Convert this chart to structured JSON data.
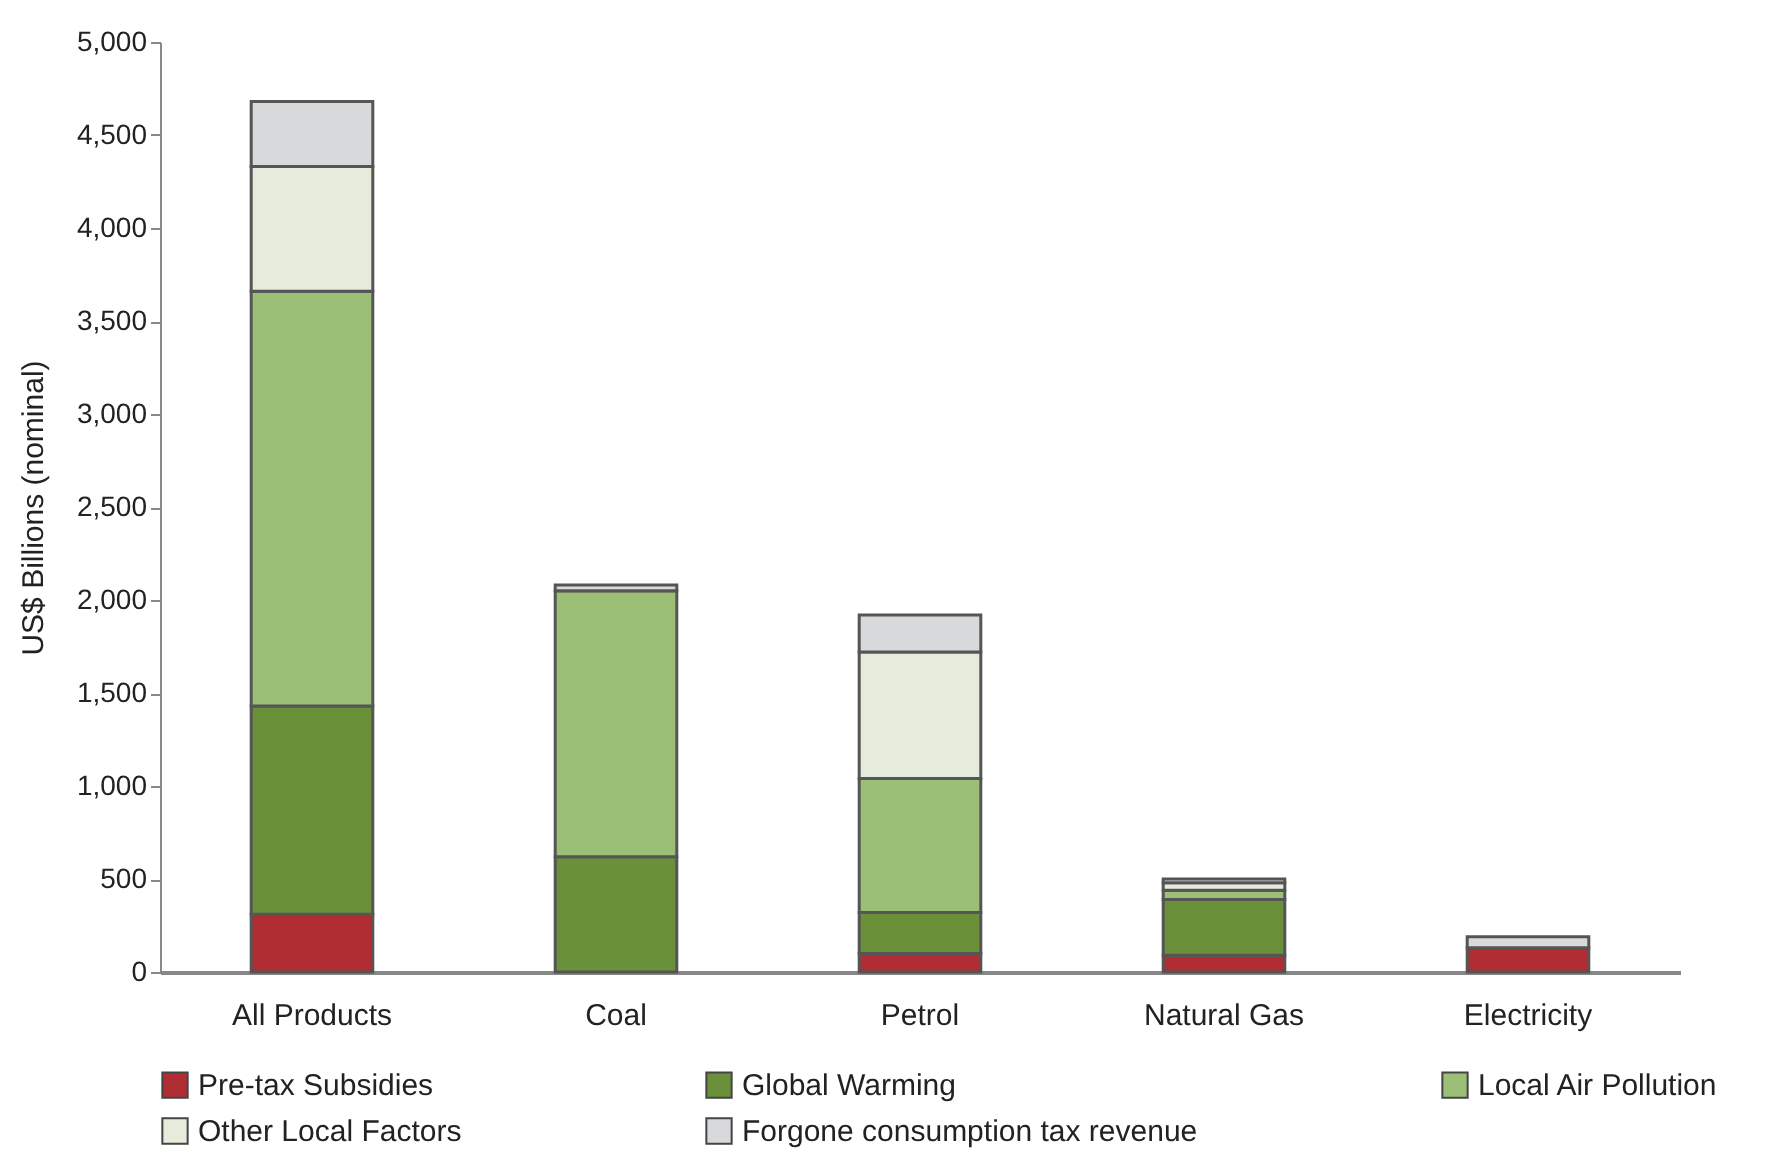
{
  "chart_data": {
    "type": "bar",
    "stacked": true,
    "ylabel": "US$ Billions (nominal)",
    "categories": [
      "All Products",
      "Coal",
      "Petrol",
      "Natural Gas",
      "Electricity"
    ],
    "series": [
      {
        "name": "Pre-tax Subsidies",
        "color": "#b02e33",
        "values": [
          310,
          null,
          100,
          90,
          130
        ]
      },
      {
        "name": "Global Warming",
        "color": "#6a913a",
        "values": [
          1120,
          620,
          220,
          300,
          0
        ]
      },
      {
        "name": "Local Air Pollution",
        "color": "#9bbf77",
        "values": [
          2230,
          1430,
          720,
          50,
          0
        ]
      },
      {
        "name": "Other Local Factors",
        "color": "#e5ecdc",
        "values": [
          670,
          0,
          680,
          40,
          0
        ]
      },
      {
        "name": "Forgone consumption tax revenue",
        "color": "#d8d9db",
        "values": [
          350,
          30,
          200,
          20,
          60
        ]
      }
    ],
    "ylim": [
      0,
      5000
    ],
    "yticks": [
      {
        "value": 0,
        "label": "0"
      },
      {
        "value": 500,
        "label": "500"
      },
      {
        "value": 1000,
        "label": "1,000"
      },
      {
        "value": 1500,
        "label": "1,500"
      },
      {
        "value": 2000,
        "label": "2,000"
      },
      {
        "value": 2500,
        "label": "2,500"
      },
      {
        "value": 3000,
        "label": "3,000"
      },
      {
        "value": 3500,
        "label": "3,500"
      },
      {
        "value": 4000,
        "label": "4,000"
      },
      {
        "value": 4500,
        "label": "4,500"
      },
      {
        "value": 5000,
        "label": "5,000"
      }
    ],
    "grid": false,
    "legend": "bottom"
  }
}
